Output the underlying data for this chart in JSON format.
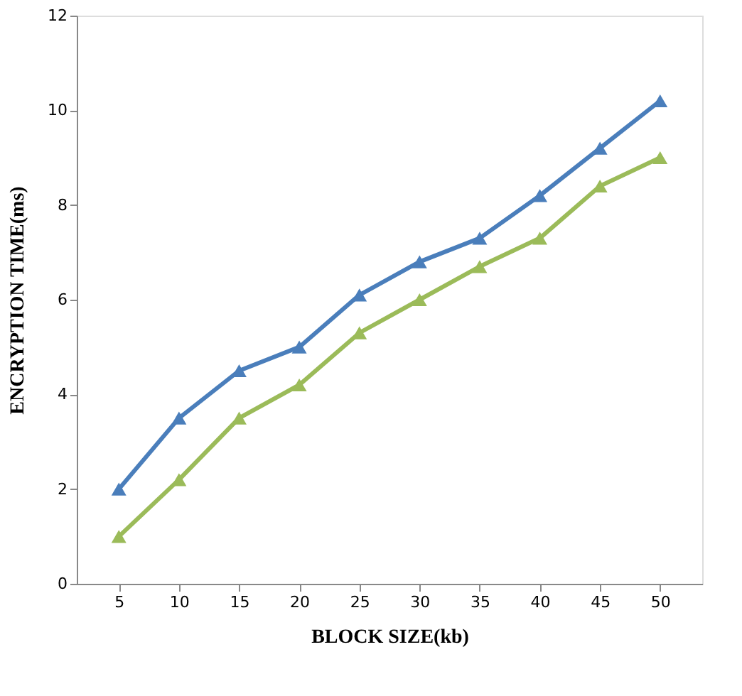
{
  "chart_data": {
    "type": "line",
    "xlabel": "BLOCK SIZE(kb)",
    "ylabel": "ENCRYPTION TIME(ms)",
    "categories": [
      "5",
      "10",
      "15",
      "20",
      "25",
      "30",
      "35",
      "40",
      "45",
      "50"
    ],
    "series": [
      {
        "color": "#4a7ebb",
        "values": [
          2.0,
          3.5,
          4.5,
          5.0,
          6.1,
          6.8,
          7.3,
          8.2,
          9.2,
          10.2
        ]
      },
      {
        "color": "#9bbb59",
        "values": [
          1.0,
          2.2,
          3.5,
          4.2,
          5.3,
          6.0,
          6.7,
          7.3,
          8.4,
          9.0
        ]
      }
    ],
    "ylim": [
      0,
      12
    ],
    "yticks": [
      0,
      2,
      4,
      6,
      8,
      10,
      12
    ],
    "grid": false,
    "legend": false,
    "marker": "triangle",
    "line_style": "solid"
  }
}
